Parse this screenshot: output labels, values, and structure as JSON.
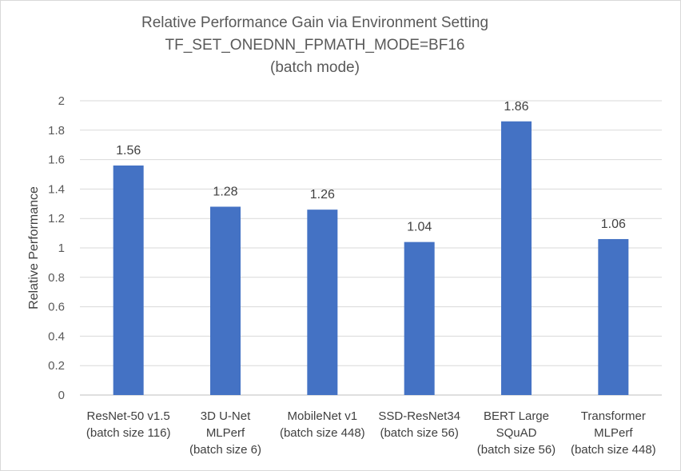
{
  "chart_data": {
    "type": "bar",
    "title": "Relative Performance Gain via Environment Setting",
    "title_lines": [
      "Relative Performance Gain via Environment Setting",
      "TF_SET_ONEDNN_FPMATH_MODE=BF16",
      "(batch mode)"
    ],
    "ylabel": "Relative Performance",
    "xlabel": "",
    "ylim": [
      0,
      2
    ],
    "yticks": [
      "0",
      "0.2",
      "0.4",
      "0.6",
      "0.8",
      "1",
      "1.2",
      "1.4",
      "1.6",
      "1.8",
      "2"
    ],
    "grid": true,
    "legend": "none",
    "bar_color": "#4472c4",
    "categories": [
      [
        "ResNet-50 v1.5",
        "(batch size 116)"
      ],
      [
        "3D U-Net",
        "MLPerf",
        "(batch size 6)"
      ],
      [
        "MobileNet v1",
        "(batch size 448)"
      ],
      [
        "SSD-ResNet34",
        "(batch size 56)"
      ],
      [
        "BERT Large",
        "SQuAD",
        "(batch size 56)"
      ],
      [
        "Transformer",
        "MLPerf",
        "(batch size 448)"
      ]
    ],
    "values": [
      1.56,
      1.28,
      1.26,
      1.04,
      1.86,
      1.06
    ],
    "data_labels": [
      "1.56",
      "1.28",
      "1.26",
      "1.04",
      "1.86",
      "1.06"
    ]
  }
}
